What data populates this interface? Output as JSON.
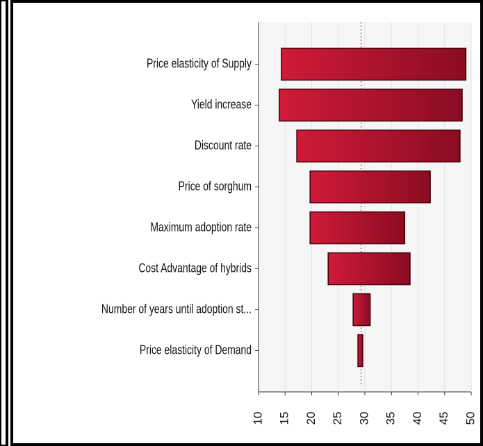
{
  "chart_data": {
    "type": "tornado",
    "categories": [
      "Price elasticity of Supply",
      "Yield increase",
      "Discount rate",
      "Price of sorghum",
      "Maximum adoption rate",
      "Cost Advantage of hybrids",
      "Number of years until adoption st...",
      "Price elasticity of Demand"
    ],
    "low": [
      14.3,
      13.9,
      17.2,
      19.7,
      19.7,
      23.1,
      27.8,
      28.7
    ],
    "high": [
      49.0,
      48.3,
      47.9,
      42.3,
      37.5,
      38.5,
      31.0,
      29.6
    ],
    "base": 29.3,
    "color": "#b3102c",
    "xlim": [
      10,
      50
    ],
    "xticks": [
      10,
      15,
      20,
      25,
      30,
      35,
      40,
      45,
      50
    ],
    "grid": true
  }
}
